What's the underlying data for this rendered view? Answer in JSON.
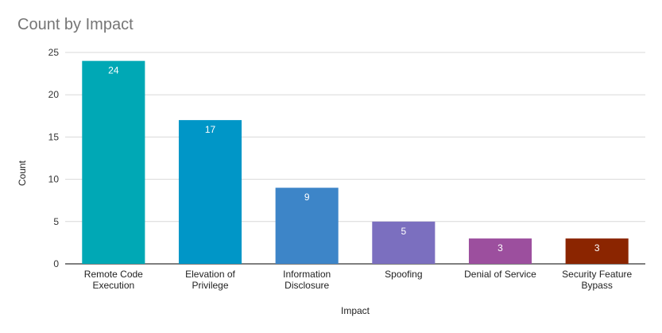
{
  "chart_data": {
    "type": "bar",
    "title": "Count by Impact",
    "xlabel": "Impact",
    "ylabel": "Count",
    "ylim": [
      0,
      25
    ],
    "yticks": [
      0,
      5,
      10,
      15,
      20,
      25
    ],
    "grid": true,
    "categories": [
      [
        "Remote Code",
        "Execution"
      ],
      [
        "Elevation of",
        "Privilege"
      ],
      [
        "Information",
        "Disclosure"
      ],
      [
        "Spoofing"
      ],
      [
        "Denial of Service"
      ],
      [
        "Security Feature",
        "Bypass"
      ]
    ],
    "values": [
      24,
      17,
      9,
      5,
      3,
      3
    ],
    "data_labels": [
      "24",
      "17",
      "9",
      "5",
      "3",
      "3"
    ],
    "colors": [
      "#00a8b5",
      "#0096c7",
      "#3d85c8",
      "#7b6fbf",
      "#9c4f9e",
      "#8b2500"
    ]
  }
}
